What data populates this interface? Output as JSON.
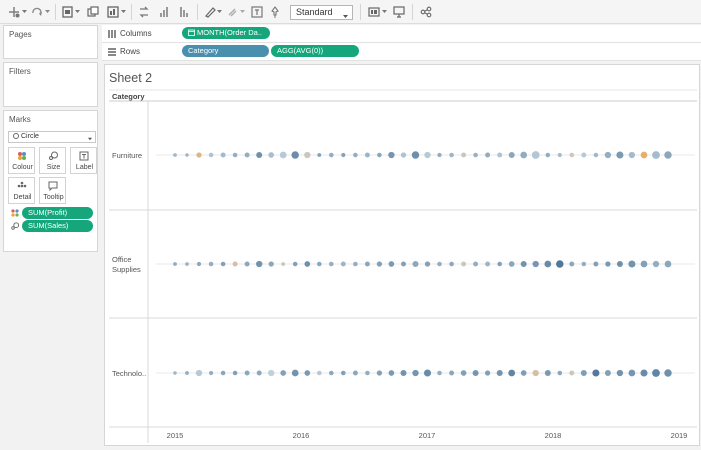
{
  "toolbar": {
    "fit_mode": "Standard",
    "icons": [
      "tableau-logo-icon",
      "redo-icon",
      "new-datasource-icon",
      "duplicate-sheet-icon",
      "new-worksheet-icon",
      "swap-icon",
      "sort-ascending-icon",
      "sort-descending-icon",
      "highlight-icon",
      "group-icon",
      "label-icon",
      "pin-icon",
      "show-cards-icon",
      "presentation-icon",
      "share-icon"
    ]
  },
  "panels": {
    "pages": "Pages",
    "filters": "Filters",
    "marks": "Marks"
  },
  "shelves": {
    "columns_label": "Columns",
    "rows_label": "Rows",
    "columns_pill": "MONTH(Order Da..",
    "rows_pills": [
      "Category",
      "AGG(AVG(0))"
    ]
  },
  "marks": {
    "type": "Circle",
    "buttons": [
      "Colour",
      "Size",
      "Label",
      "Detail",
      "Tooltip"
    ],
    "fields": [
      "SUM(Profit)",
      "SUM(Sales)"
    ]
  },
  "sheet": {
    "title": "Sheet 2",
    "row_header": "Category"
  },
  "colors": {
    "accent_green": "#15a77b",
    "pill_blue": "#4a8fae",
    "profit_low": "#f39c3d",
    "profit_mid": "#b9ccd6",
    "profit_high": "#2a5a85"
  },
  "chart_data": {
    "type": "scatter",
    "x_axis_ticks": [
      "2015",
      "2016",
      "2017",
      "2018",
      "2019"
    ],
    "categories": [
      "Furniture",
      "Office\nSupplies",
      "Technolo.."
    ],
    "category_rows": [
      {
        "name": "Furniture",
        "color_levels": [
          0.4,
          0.45,
          0.1,
          0.35,
          0.42,
          0.5,
          0.5,
          0.72,
          0.38,
          0.3,
          0.74,
          0.2,
          0.6,
          0.5,
          0.58,
          0.5,
          0.45,
          0.55,
          0.68,
          0.35,
          0.72,
          0.3,
          0.52,
          0.45,
          0.2,
          0.48,
          0.52,
          0.35,
          0.55,
          0.52,
          0.32,
          0.5,
          0.4,
          0.2,
          0.3,
          0.42,
          0.5,
          0.65,
          0.4,
          0.05,
          0.4,
          0.55
        ],
        "size_levels": [
          0.2,
          0.15,
          0.4,
          0.3,
          0.35,
          0.3,
          0.35,
          0.5,
          0.45,
          0.6,
          0.7,
          0.55,
          0.2,
          0.3,
          0.25,
          0.3,
          0.35,
          0.3,
          0.55,
          0.4,
          0.7,
          0.55,
          0.25,
          0.3,
          0.35,
          0.3,
          0.35,
          0.35,
          0.5,
          0.6,
          0.75,
          0.3,
          0.25,
          0.3,
          0.35,
          0.3,
          0.55,
          0.65,
          0.55,
          0.6,
          0.75,
          0.7
        ]
      },
      {
        "name": "Office Supplies",
        "color_levels": [
          0.5,
          0.45,
          0.55,
          0.5,
          0.6,
          0.15,
          0.55,
          0.7,
          0.55,
          0.2,
          0.6,
          0.72,
          0.55,
          0.5,
          0.45,
          0.5,
          0.55,
          0.6,
          0.65,
          0.6,
          0.55,
          0.6,
          0.5,
          0.55,
          0.2,
          0.5,
          0.45,
          0.6,
          0.55,
          0.7,
          0.68,
          0.75,
          0.9,
          0.55,
          0.5,
          0.6,
          0.65,
          0.72,
          0.7,
          0.6,
          0.5,
          0.55
        ],
        "size_levels": [
          0.2,
          0.2,
          0.25,
          0.3,
          0.3,
          0.35,
          0.35,
          0.55,
          0.4,
          0.2,
          0.3,
          0.45,
          0.3,
          0.3,
          0.35,
          0.3,
          0.35,
          0.4,
          0.45,
          0.35,
          0.5,
          0.4,
          0.3,
          0.3,
          0.35,
          0.35,
          0.35,
          0.3,
          0.45,
          0.5,
          0.55,
          0.6,
          0.7,
          0.35,
          0.3,
          0.35,
          0.4,
          0.5,
          0.65,
          0.6,
          0.55,
          0.6
        ]
      },
      {
        "name": "Technology",
        "color_levels": [
          0.45,
          0.5,
          0.3,
          0.5,
          0.55,
          0.6,
          0.55,
          0.55,
          0.25,
          0.6,
          0.7,
          0.65,
          0.3,
          0.55,
          0.6,
          0.55,
          0.5,
          0.6,
          0.65,
          0.7,
          0.68,
          0.75,
          0.5,
          0.55,
          0.6,
          0.68,
          0.6,
          0.7,
          0.8,
          0.62,
          0.15,
          0.65,
          0.55,
          0.2,
          0.62,
          0.88,
          0.6,
          0.7,
          0.68,
          0.75,
          0.8,
          0.72
        ],
        "size_levels": [
          0.15,
          0.2,
          0.55,
          0.25,
          0.3,
          0.3,
          0.35,
          0.35,
          0.55,
          0.45,
          0.6,
          0.45,
          0.3,
          0.3,
          0.3,
          0.35,
          0.3,
          0.4,
          0.45,
          0.5,
          0.55,
          0.65,
          0.3,
          0.35,
          0.45,
          0.5,
          0.4,
          0.5,
          0.6,
          0.45,
          0.55,
          0.5,
          0.3,
          0.35,
          0.5,
          0.65,
          0.5,
          0.55,
          0.6,
          0.65,
          0.75,
          0.7
        ]
      }
    ]
  }
}
